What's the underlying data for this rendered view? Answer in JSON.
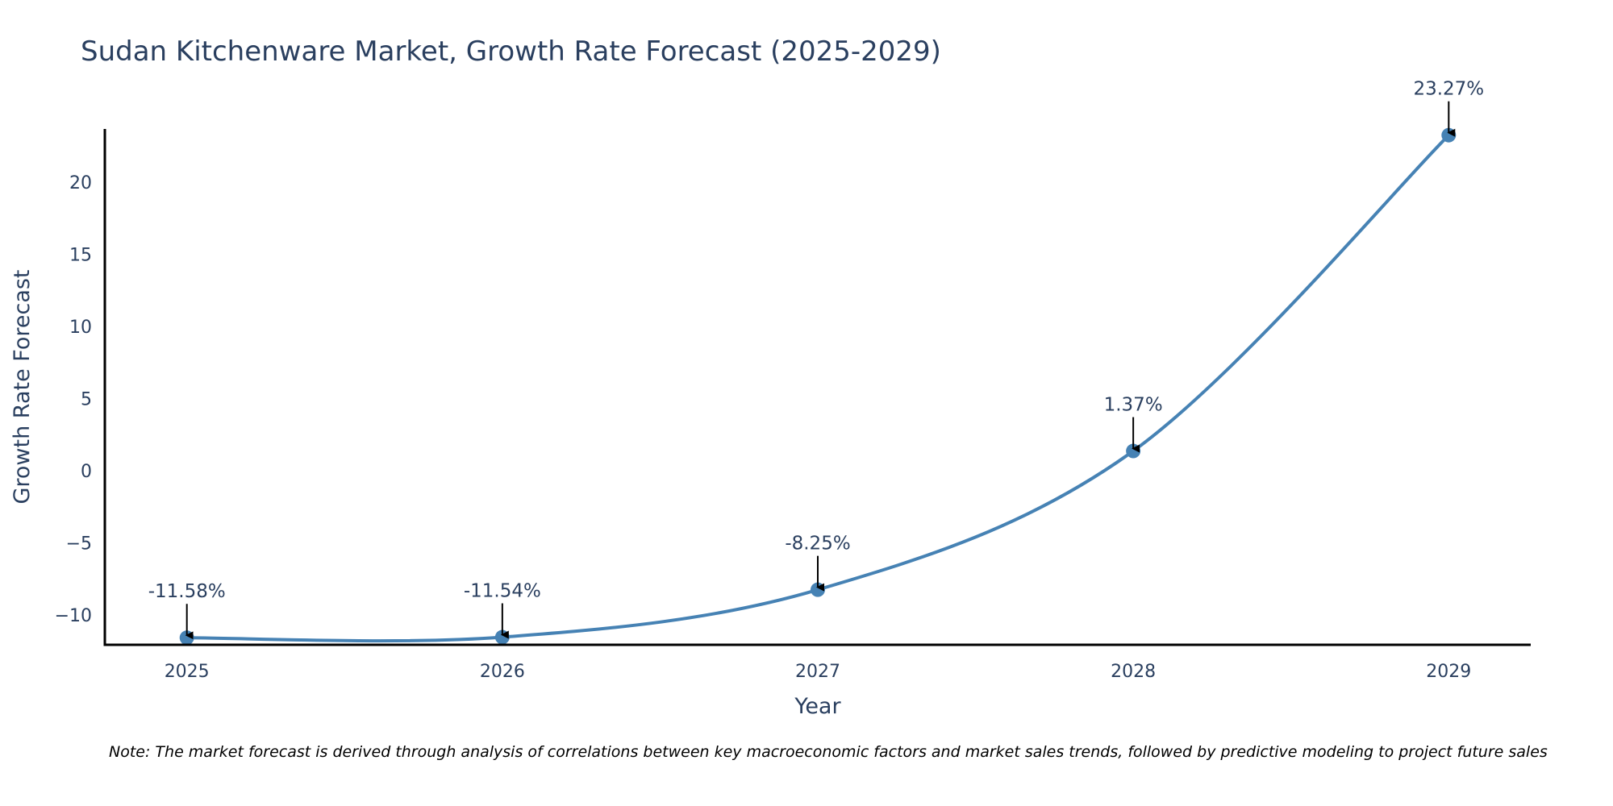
{
  "chart_data": {
    "type": "line",
    "title": "Sudan Kitchenware Market, Growth Rate Forecast (2025-2029)",
    "xlabel": "Year",
    "ylabel": "Growth Rate Forecast",
    "x": [
      2025,
      2026,
      2027,
      2028,
      2029
    ],
    "series": [
      {
        "name": "Growth Rate Forecast",
        "values": [
          -11.58,
          -11.54,
          -8.25,
          1.37,
          23.27
        ],
        "color": "#4682b4"
      }
    ],
    "annotations": [
      "-11.58%",
      "-11.54%",
      "-8.25%",
      "1.37%",
      "23.27%"
    ],
    "x_ticks": [
      "2025",
      "2026",
      "2027",
      "2028",
      "2029"
    ],
    "y_ticks": [
      -10,
      -5,
      0,
      5,
      10,
      15,
      20
    ],
    "y_tick_labels": [
      "−10",
      "−5",
      "0",
      "5",
      "10",
      "15",
      "20"
    ],
    "xlim": [
      2024.74,
      2029.26
    ],
    "ylim": [
      -12.07,
      23.7
    ],
    "grid": false,
    "line_shape": "spline",
    "legend": "none"
  },
  "note": "Note: The market forecast is derived through analysis of correlations between key macroeconomic factors and market sales trends, followed by predictive modeling to project future sales"
}
